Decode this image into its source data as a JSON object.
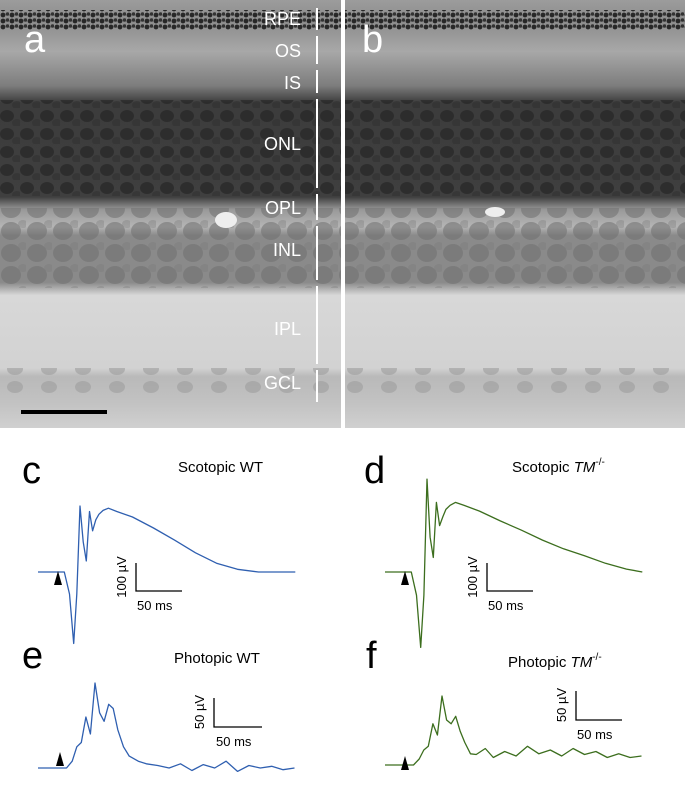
{
  "panels": {
    "a": {
      "letter": "a"
    },
    "b": {
      "letter": "b"
    },
    "c": {
      "letter": "c",
      "title": "Scotopic WT",
      "scale_y": "100 µV",
      "scale_x": "50 ms"
    },
    "d": {
      "letter": "d",
      "title_main": "Scotopic ",
      "title_italic": "TM",
      "title_sup": "-/-",
      "scale_y": "100 µV",
      "scale_x": "50 ms"
    },
    "e": {
      "letter": "e",
      "title": "Photopic WT",
      "scale_y": "50 µV",
      "scale_x": "50 ms"
    },
    "f": {
      "letter": "f",
      "title_main": "Photopic ",
      "title_italic": "TM",
      "title_sup": "-/-",
      "scale_y": "50 µV",
      "scale_x": "50 ms"
    }
  },
  "layers": [
    "RPE",
    "OS",
    "IS",
    "ONL",
    "OPL",
    "INL",
    "IPL",
    "GCL"
  ],
  "colors": {
    "wt_trace": "#2f5fb0",
    "tm_trace": "#3c6e1e",
    "text": "#000000",
    "layer_label": "#ffffff"
  },
  "chart_data": [
    {
      "type": "line",
      "panel": "c",
      "title": "Scotopic WT",
      "x": [
        0,
        10,
        20,
        25,
        30,
        34,
        37,
        40,
        43,
        46,
        49,
        52,
        55,
        58,
        62,
        67,
        75,
        90,
        110,
        130,
        150,
        170,
        190,
        210,
        230,
        245
      ],
      "y": [
        0,
        0,
        0,
        0,
        -40,
        -130,
        -40,
        120,
        55,
        20,
        110,
        75,
        95,
        105,
        112,
        116,
        110,
        100,
        80,
        58,
        35,
        16,
        5,
        0,
        0,
        0
      ]
    },
    {
      "type": "line",
      "panel": "d",
      "title": "Scotopic TM-/-",
      "x": [
        0,
        10,
        20,
        25,
        30,
        34,
        37,
        40,
        43,
        46,
        49,
        52,
        55,
        58,
        62,
        67,
        75,
        90,
        110,
        130,
        150,
        170,
        190,
        210,
        230,
        245
      ],
      "y": [
        0,
        0,
        0,
        0,
        -40,
        -130,
        -40,
        160,
        60,
        25,
        120,
        80,
        95,
        108,
        115,
        120,
        115,
        105,
        88,
        72,
        55,
        40,
        28,
        15,
        5,
        0
      ]
    },
    {
      "type": "line",
      "panel": "e",
      "title": "Photopic WT",
      "x": [
        0,
        10,
        20,
        25,
        30,
        34,
        38,
        42,
        46,
        50,
        54,
        58,
        62,
        66,
        70,
        75,
        80,
        88,
        95,
        105,
        115,
        125,
        135,
        145,
        155,
        165,
        175,
        185,
        195,
        205,
        215,
        225
      ],
      "y": [
        0,
        0,
        0,
        0,
        8,
        25,
        30,
        60,
        40,
        100,
        65,
        55,
        75,
        70,
        45,
        25,
        14,
        8,
        5,
        3,
        0,
        5,
        -3,
        4,
        0,
        8,
        -4,
        3,
        0,
        2,
        -2,
        0
      ]
    },
    {
      "type": "line",
      "panel": "f",
      "title": "Photopic TM-/-",
      "x": [
        0,
        10,
        20,
        25,
        30,
        34,
        38,
        42,
        46,
        50,
        54,
        58,
        62,
        66,
        70,
        75,
        80,
        88,
        95,
        105,
        115,
        125,
        135,
        145,
        155,
        165,
        175,
        185,
        195,
        205,
        215,
        225
      ],
      "y": [
        0,
        0,
        0,
        0,
        8,
        20,
        25,
        55,
        40,
        92,
        60,
        55,
        65,
        45,
        30,
        15,
        14,
        22,
        10,
        18,
        12,
        25,
        15,
        20,
        12,
        22,
        14,
        18,
        10,
        15,
        10,
        12
      ]
    }
  ]
}
